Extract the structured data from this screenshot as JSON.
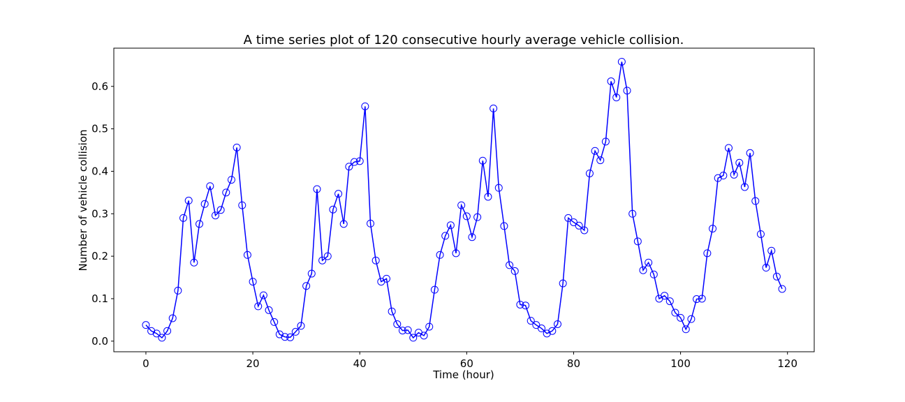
{
  "chart_data": {
    "type": "line",
    "title": "A time series plot of 120 consecutive hourly average vehicle collision.",
    "xlabel": "Time (hour)",
    "ylabel": "Number of vehicle collision",
    "xlim": [
      -6,
      125
    ],
    "ylim": [
      -0.025,
      0.69
    ],
    "xticks": [
      0,
      20,
      40,
      60,
      80,
      100,
      120
    ],
    "xtick_labels": [
      "0",
      "20",
      "40",
      "60",
      "80",
      "100",
      "120"
    ],
    "yticks": [
      0.0,
      0.1,
      0.2,
      0.3,
      0.4,
      0.5,
      0.6
    ],
    "ytick_labels": [
      "0.0",
      "0.1",
      "0.2",
      "0.3",
      "0.4",
      "0.5",
      "0.6"
    ],
    "grid": false,
    "marker": "open-circle",
    "line_color": "#0000ff",
    "series": [
      {
        "x": [
          0,
          1,
          2,
          3,
          4,
          5,
          6,
          7,
          8,
          9,
          10,
          11,
          12,
          13,
          14,
          15,
          16,
          17,
          18,
          19,
          20,
          21,
          22,
          23,
          24,
          25,
          26,
          27,
          28,
          29,
          30,
          31,
          32,
          33,
          34,
          35,
          36,
          37,
          38,
          39,
          40,
          41,
          42,
          43,
          44,
          45,
          46,
          47,
          48,
          49,
          50,
          51,
          52,
          53,
          54,
          55,
          56,
          57,
          58,
          59,
          60,
          61,
          62,
          63,
          64,
          65,
          66,
          67,
          68,
          69,
          70,
          71,
          72,
          73,
          74,
          75,
          76,
          77,
          78,
          79,
          80,
          81,
          82,
          83,
          84,
          85,
          86,
          87,
          88,
          89,
          90,
          91,
          92,
          93,
          94,
          95,
          96,
          97,
          98,
          99,
          100,
          101,
          102,
          103,
          104,
          105,
          106,
          107,
          108,
          109,
          110,
          111,
          112,
          113,
          114,
          115,
          116,
          117,
          118,
          119
        ],
        "values": [
          0.038,
          0.024,
          0.018,
          0.008,
          0.024,
          0.054,
          0.119,
          0.29,
          0.331,
          0.185,
          0.276,
          0.323,
          0.365,
          0.296,
          0.309,
          0.35,
          0.38,
          0.456,
          0.32,
          0.203,
          0.14,
          0.082,
          0.108,
          0.073,
          0.045,
          0.016,
          0.01,
          0.009,
          0.022,
          0.036,
          0.13,
          0.159,
          0.358,
          0.19,
          0.2,
          0.31,
          0.347,
          0.276,
          0.411,
          0.422,
          0.424,
          0.553,
          0.277,
          0.19,
          0.14,
          0.147,
          0.07,
          0.04,
          0.025,
          0.026,
          0.008,
          0.02,
          0.013,
          0.034,
          0.121,
          0.203,
          0.248,
          0.273,
          0.207,
          0.32,
          0.294,
          0.245,
          0.292,
          0.425,
          0.34,
          0.548,
          0.361,
          0.271,
          0.179,
          0.165,
          0.086,
          0.084,
          0.048,
          0.038,
          0.03,
          0.018,
          0.024,
          0.04,
          0.136,
          0.29,
          0.28,
          0.272,
          0.261,
          0.395,
          0.448,
          0.426,
          0.47,
          0.612,
          0.574,
          0.658,
          0.59,
          0.3,
          0.235,
          0.167,
          0.185,
          0.157,
          0.1,
          0.107,
          0.094,
          0.067,
          0.055,
          0.028,
          0.052,
          0.099,
          0.1,
          0.207,
          0.265,
          0.384,
          0.39,
          0.455,
          0.392,
          0.42,
          0.363,
          0.443,
          0.33,
          0.252,
          0.173,
          0.213,
          0.152,
          0.123
        ]
      }
    ]
  }
}
